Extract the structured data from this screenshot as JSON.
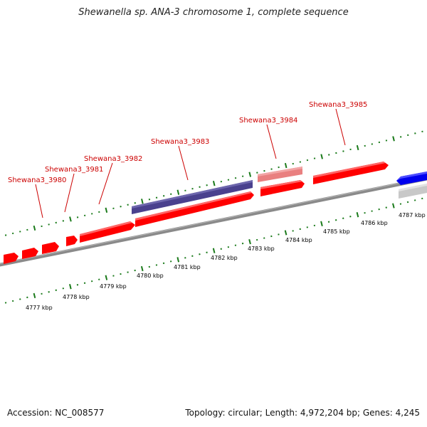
{
  "title": "Shewanella sp. ANA-3 chromosome 1, complete sequence",
  "footer": {
    "accession": "Accession: NC_008577",
    "summary": "Topology: circular; Length: 4,972,204 bp; Genes: 4,245"
  },
  "colors": {
    "gene_forward": "#ff0000",
    "gene_forward_light": "#e98080",
    "gene_reverse": "#0000ee",
    "feature_purple": "#4a418e",
    "feature_grey": "#c8c8c8",
    "backbone": "#8a8a8a",
    "tick": "#1a7a1a",
    "label": "#cc0000",
    "scale_label": "#000000"
  },
  "scale_ticks": [
    {
      "label": "4777 kbp"
    },
    {
      "label": "4778 kbp"
    },
    {
      "label": "4779 kbp"
    },
    {
      "label": "4780 kbp"
    },
    {
      "label": "4781 kbp"
    },
    {
      "label": "4782 kbp"
    },
    {
      "label": "4783 kbp"
    },
    {
      "label": "4784 kbp"
    },
    {
      "label": "4785 kbp"
    },
    {
      "label": "4786 kbp"
    },
    {
      "label": "4787 kbp"
    }
  ],
  "gene_labels": [
    {
      "name": "Shewana3_3980"
    },
    {
      "name": "Shewana3_3981"
    },
    {
      "name": "Shewana3_3982"
    },
    {
      "name": "Shewana3_3983"
    },
    {
      "name": "Shewana3_3984"
    },
    {
      "name": "Shewana3_3985"
    }
  ]
}
